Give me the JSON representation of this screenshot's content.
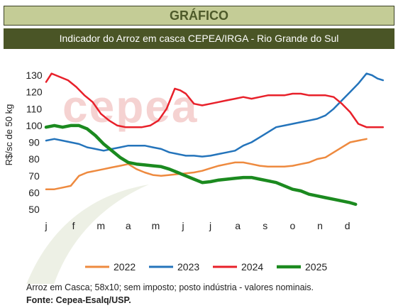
{
  "header": {
    "title": "GRÁFICO",
    "subtitle": "Indicador do Arroz em casca CEPEA/IRGA - Rio Grande do Sul"
  },
  "watermark": "cepea",
  "footnote": "Arroz em Casca; 58x10; sem imposto; posto indústria  - valores nominais.",
  "source": "Fonte: Cepea-Esalq/USP.",
  "chart_data": {
    "type": "line",
    "ylabel": "R$/sc de 50 kg",
    "xlabel": "",
    "ylim": [
      50,
      130
    ],
    "yticks": [
      "50",
      "60",
      "70",
      "80",
      "90",
      "100",
      "110",
      "120",
      "130"
    ],
    "categories": [
      "j",
      "f",
      "m",
      "a",
      "m",
      "j",
      "j",
      "a",
      "s",
      "o",
      "n",
      "d"
    ],
    "grid": false,
    "legend": "bottom",
    "series": [
      {
        "name": "2022",
        "color": "#ee8a3f",
        "x": [
          0,
          0.3,
          0.6,
          0.9,
          1.0,
          1.2,
          1.5,
          1.8,
          2.1,
          2.4,
          2.7,
          3.0,
          3.3,
          3.6,
          3.9,
          4.2,
          4.5,
          4.8,
          5.1,
          5.4,
          5.7,
          6.0,
          6.3,
          6.6,
          6.9,
          7.2,
          7.5,
          7.8,
          8.1,
          8.4,
          8.7,
          9.0,
          9.3,
          9.6,
          9.9,
          10.2,
          10.5,
          10.8,
          11.1,
          11.4,
          11.7
        ],
        "values": [
          62,
          62,
          63,
          64,
          66,
          70,
          72,
          73,
          74,
          75,
          76,
          77,
          74,
          72,
          70.5,
          70,
          70.5,
          71,
          71.5,
          72,
          73,
          74.5,
          76,
          77,
          78,
          78,
          77,
          76,
          75.5,
          75.5,
          75.5,
          76,
          77,
          78,
          80,
          81,
          84,
          87,
          90,
          91,
          92
        ]
      },
      {
        "name": "2023",
        "color": "#2474bb",
        "x": [
          0,
          0.3,
          0.6,
          0.9,
          1.2,
          1.5,
          1.8,
          2.1,
          2.4,
          2.7,
          3.0,
          3.3,
          3.6,
          3.9,
          4.2,
          4.5,
          4.8,
          5.1,
          5.4,
          5.7,
          6.0,
          6.3,
          6.6,
          6.9,
          7.2,
          7.5,
          7.8,
          8.1,
          8.4,
          8.7,
          9.0,
          9.3,
          9.6,
          9.9,
          10.2,
          10.5,
          10.8,
          11.1,
          11.4,
          11.7,
          11.9,
          12.1,
          12.3
        ],
        "values": [
          91,
          92,
          91,
          90,
          89,
          87,
          86,
          85,
          86,
          87,
          88,
          88,
          88,
          87,
          86,
          84,
          83,
          82,
          82,
          81.5,
          82,
          83,
          84,
          85,
          88,
          90,
          93,
          96,
          99,
          100,
          101,
          102,
          103,
          104,
          106,
          110,
          115,
          120,
          125,
          131,
          130,
          128,
          127
        ]
      },
      {
        "name": "2024",
        "color": "#e8202a",
        "x": [
          0,
          0.2,
          0.5,
          0.8,
          1.1,
          1.4,
          1.7,
          2.0,
          2.3,
          2.6,
          2.9,
          3.2,
          3.5,
          3.8,
          4.1,
          4.4,
          4.7,
          4.9,
          5.1,
          5.4,
          5.7,
          6.0,
          6.3,
          6.6,
          6.9,
          7.2,
          7.5,
          7.8,
          8.1,
          8.4,
          8.7,
          9.0,
          9.3,
          9.6,
          9.9,
          10.2,
          10.5,
          10.8,
          11.1,
          11.4,
          11.7,
          12.0,
          12.3
        ],
        "values": [
          126,
          131,
          129,
          127,
          123,
          118,
          114,
          107,
          103,
          100,
          99,
          99,
          99,
          100,
          103,
          110,
          122,
          121,
          119,
          113,
          112,
          113,
          114,
          115,
          116,
          117,
          116,
          117,
          118,
          118,
          118,
          119,
          119,
          118,
          118,
          118,
          117,
          113,
          108,
          101,
          99,
          99,
          99
        ]
      },
      {
        "name": "2025",
        "color": "#1b8a1f",
        "x": [
          0,
          0.3,
          0.6,
          0.9,
          1.2,
          1.5,
          1.8,
          2.1,
          2.4,
          2.7,
          3.0,
          3.3,
          3.6,
          3.9,
          4.2,
          4.5,
          4.8,
          5.1,
          5.4,
          5.7,
          6.0,
          6.3,
          6.6,
          6.9,
          7.2,
          7.5,
          7.8,
          8.1,
          8.4,
          8.7,
          9.0,
          9.3,
          9.6,
          9.9,
          10.2,
          10.5,
          10.8,
          11.1,
          11.3
        ],
        "values": [
          99,
          100,
          99,
          100,
          100,
          98,
          94,
          89,
          85,
          81,
          78,
          77,
          76.5,
          76,
          75.5,
          74,
          72,
          70,
          68,
          66,
          66.5,
          67.5,
          68,
          68.5,
          69,
          69,
          68,
          67,
          66,
          64,
          62,
          61,
          59,
          58,
          57,
          56,
          55,
          54,
          53
        ]
      }
    ]
  }
}
